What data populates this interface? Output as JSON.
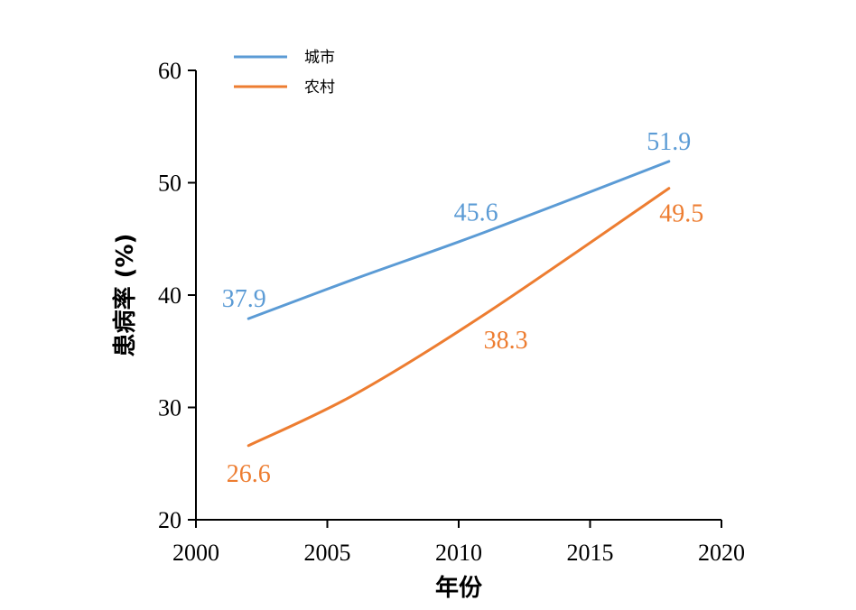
{
  "chart_data": {
    "type": "line",
    "title": "",
    "xlabel": "年份",
    "ylabel": "患病率 (%)",
    "xlim": [
      2000,
      2020
    ],
    "ylim": [
      20,
      60
    ],
    "xticks": [
      2000,
      2005,
      2010,
      2015,
      2020
    ],
    "yticks": [
      20,
      30,
      40,
      50,
      60
    ],
    "grid": false,
    "legend_position": "top-left",
    "series": [
      {
        "name": "城市",
        "color": "#5B9BD5",
        "x": [
          2002,
          2006,
          2011,
          2018
        ],
        "y": [
          37.9,
          41.4,
          45.6,
          51.9
        ],
        "labels": [
          {
            "x": 2002,
            "y": 37.9,
            "text": "37.9"
          },
          {
            "x": 2011,
            "y": 45.6,
            "text": "45.6"
          },
          {
            "x": 2018,
            "y": 51.9,
            "text": "51.9"
          }
        ]
      },
      {
        "name": "农村",
        "color": "#ED7D31",
        "x": [
          2002,
          2006,
          2011,
          2018
        ],
        "y": [
          26.6,
          31.1,
          38.3,
          49.5
        ],
        "labels": [
          {
            "x": 2002,
            "y": 26.6,
            "text": "26.6"
          },
          {
            "x": 2011,
            "y": 38.3,
            "text": "38.3"
          },
          {
            "x": 2018,
            "y": 49.5,
            "text": "49.5"
          }
        ]
      }
    ]
  }
}
